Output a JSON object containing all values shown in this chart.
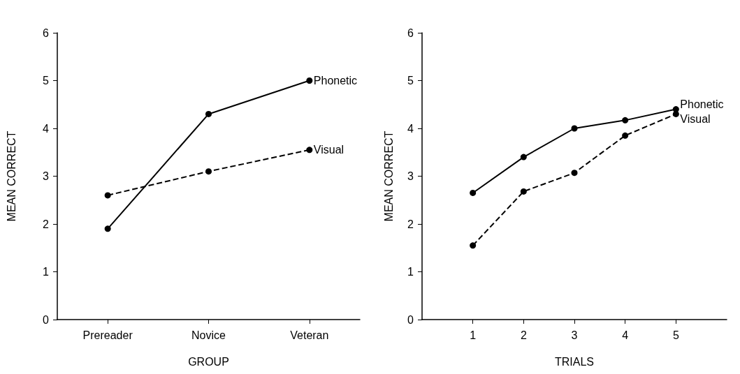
{
  "chart_data": [
    {
      "type": "line",
      "categories": [
        "Prereader",
        "Novice",
        "Veteran"
      ],
      "xlabel": "GROUP",
      "ylabel": "MEAN CORRECT",
      "ylim": [
        0,
        6
      ],
      "yticks": [
        0,
        1,
        2,
        3,
        4,
        5,
        6
      ],
      "marker": "circle",
      "grid": false,
      "series": [
        {
          "name": "Phonetic",
          "color": "#000000",
          "line_style": "solid",
          "values": [
            1.9,
            4.3,
            5.0
          ]
        },
        {
          "name": "Visual",
          "color": "#000000",
          "line_style": "dashed",
          "values": [
            2.6,
            3.1,
            3.55
          ]
        }
      ]
    },
    {
      "type": "line",
      "x": [
        1,
        2,
        3,
        4,
        5
      ],
      "xlim": [
        0,
        6
      ],
      "xticks": [
        1,
        2,
        3,
        4,
        5
      ],
      "xlabel": "TRIALS",
      "ylabel": "MEAN CORRECT",
      "ylim": [
        0,
        6
      ],
      "yticks": [
        0,
        1,
        2,
        3,
        4,
        5,
        6
      ],
      "marker": "circle",
      "grid": false,
      "series": [
        {
          "name": "Phonetic",
          "color": "#000000",
          "line_style": "solid",
          "values": [
            2.65,
            3.4,
            4.0,
            4.17,
            4.4
          ]
        },
        {
          "name": "Visual",
          "color": "#000000",
          "line_style": "dashed",
          "values": [
            1.55,
            2.68,
            3.07,
            3.85,
            4.3
          ]
        }
      ]
    }
  ]
}
